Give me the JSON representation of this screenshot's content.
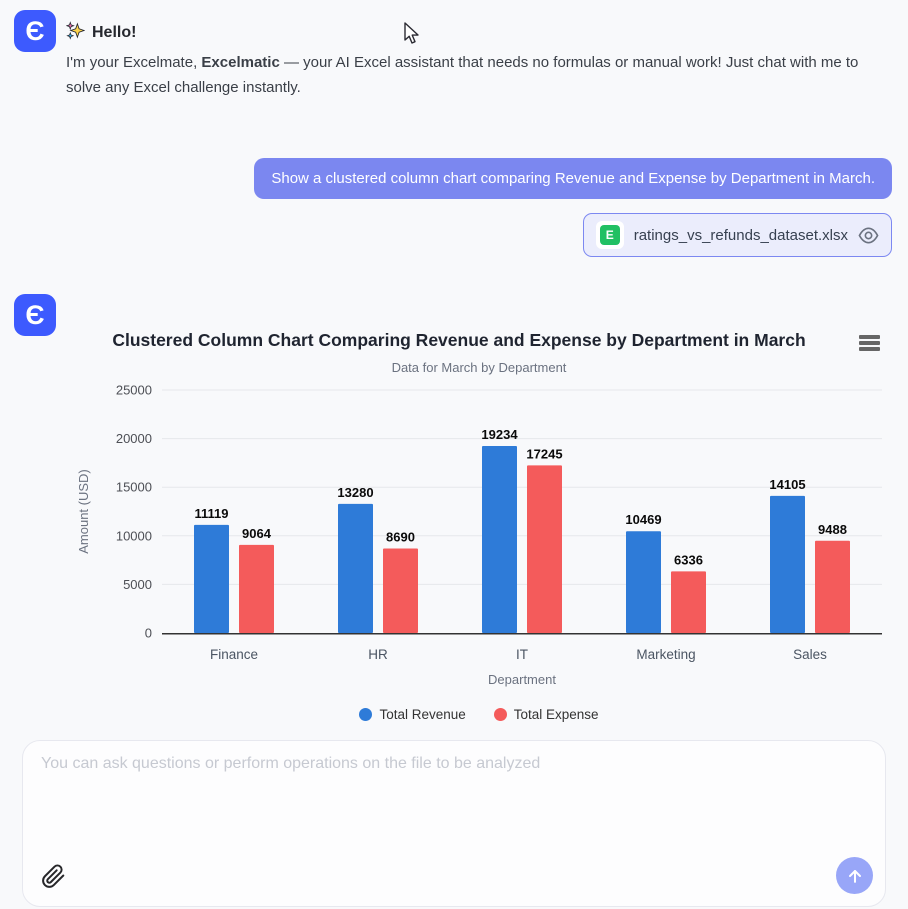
{
  "logo_letter": "Є",
  "assistant_intro": {
    "greeting": "Hello!",
    "intro_part1": "I'm your Excelmate, ",
    "intro_bold": "Excelmatic",
    "intro_part2": " — your AI Excel assistant that needs no formulas or manual work! Just chat with me to solve any Excel challenge instantly."
  },
  "user_message": {
    "text": "Show a clustered column chart comparing Revenue and Expense by Department in March.",
    "attachment": {
      "filename": "ratings_vs_refunds_dataset.xlsx",
      "file_icon_letter": "E"
    }
  },
  "chart_data": {
    "type": "bar",
    "title": "Clustered Column Chart Comparing Revenue and Expense by Department in March",
    "subtitle": "Data for March by Department",
    "categories": [
      "Finance",
      "HR",
      "IT",
      "Marketing",
      "Sales"
    ],
    "series": [
      {
        "name": "Total Revenue",
        "color": "#2e7bd8",
        "values": [
          11119,
          13280,
          19234,
          10469,
          14105
        ]
      },
      {
        "name": "Total Expense",
        "color": "#f45b5b",
        "values": [
          9064,
          8690,
          17245,
          6336,
          9488
        ]
      }
    ],
    "xlabel": "Department",
    "ylabel": "Amount (USD)",
    "ylim": [
      0,
      25000
    ],
    "ytick_step": 5000,
    "grid": true,
    "legend_position": "bottom",
    "data_labels": true
  },
  "composer": {
    "placeholder": "You can ask questions or perform operations on the file to be analyzed"
  },
  "icons": {
    "sparkles": "sparkles-emoji",
    "chart_menu": "hamburger-context-menu",
    "eye": "preview-eye",
    "paperclip": "attach-file",
    "send": "send-up-arrow"
  },
  "colors": {
    "brand_blue": "#3d5afe",
    "user_bubble": "#7b87f0",
    "chip_background": "#ebedfc",
    "chip_border": "#7c88f1",
    "excel_green": "#21c063",
    "send_button": "#98a6f8",
    "page_background": "#f8f9fb"
  }
}
